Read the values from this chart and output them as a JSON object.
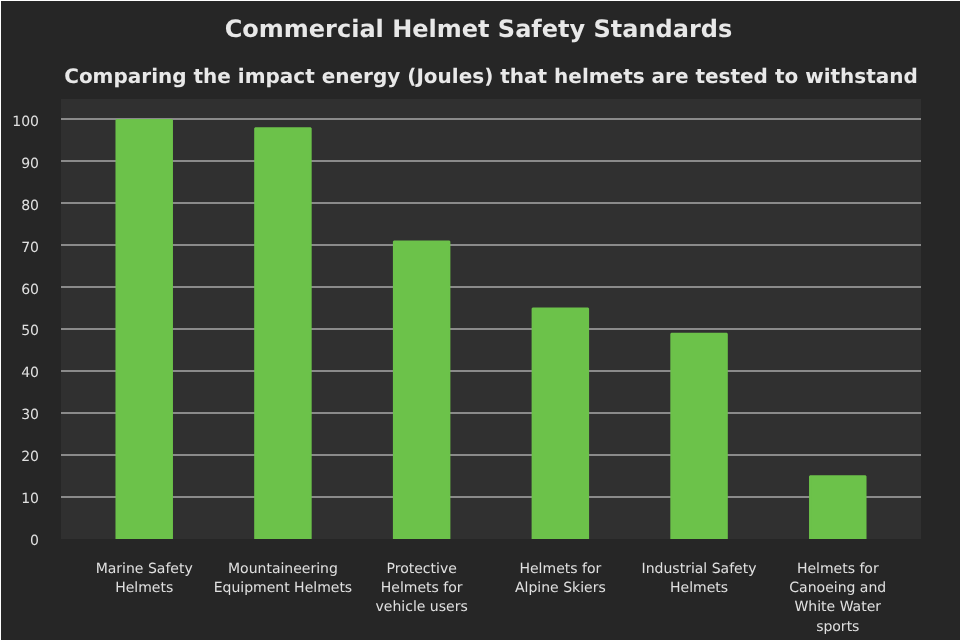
{
  "chart_data": {
    "type": "bar",
    "title": "Commercial  Helmet  Safety  Standards",
    "subtitle": "Comparing the impact energy (Joules) that helmets are tested to withstand",
    "categories": [
      "Marine Safety Helmets",
      "Mountaineering Equipment Helmets",
      "Protective Helmets for vehicle users",
      "Helmets for Alpine Skiers",
      "Industrial Safety Helmets",
      "Helmets for Canoeing and White Water sports"
    ],
    "values": [
      100,
      98,
      71,
      55,
      49,
      15
    ],
    "color": "#6cc24a",
    "ylim": [
      0,
      105
    ],
    "yticks": [
      0,
      10,
      20,
      30,
      40,
      50,
      60,
      70,
      80,
      90,
      100
    ],
    "grid": "y"
  }
}
